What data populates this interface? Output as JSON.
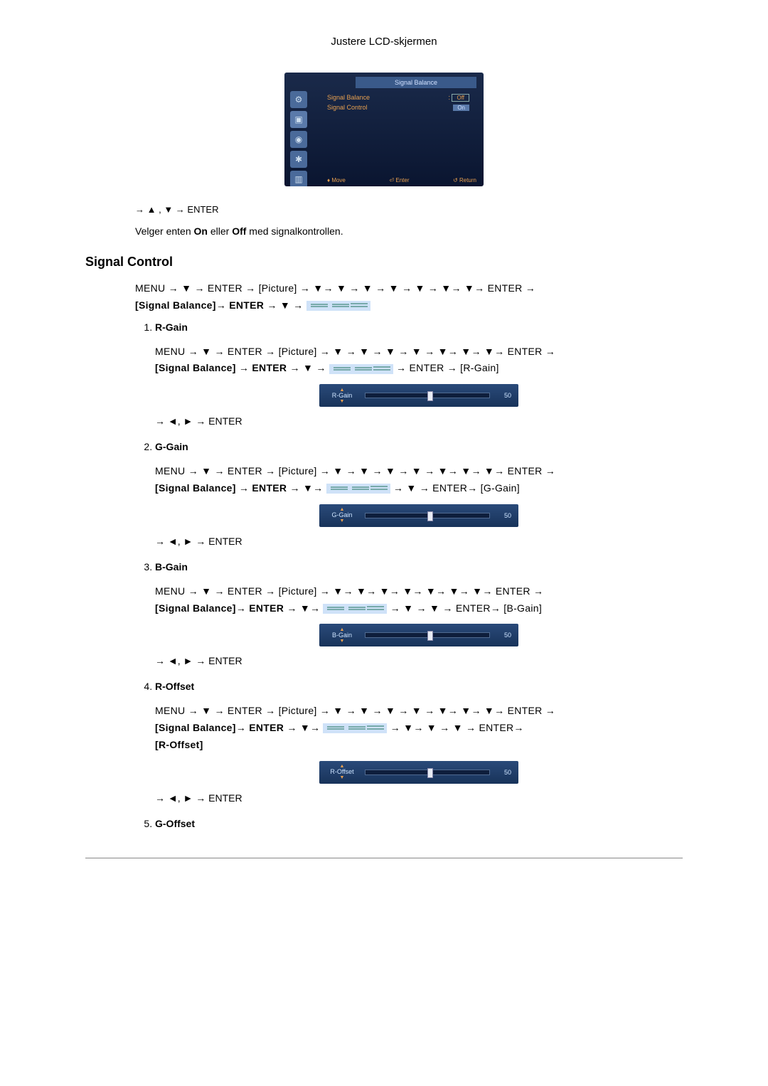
{
  "header": {
    "title": "Justere LCD-skjermen"
  },
  "osd": {
    "title": "Signal Balance",
    "items": [
      {
        "label": "Signal Balance",
        "value_off": "Off",
        "value_on": "On"
      },
      {
        "label": "Signal Control",
        "value": ""
      }
    ],
    "footer_move": "Move",
    "footer_enter": "Enter",
    "footer_return": "Return"
  },
  "nav_after_osd": "→ ▲ , ▼ → ENTER",
  "description": "Velger enten On eller Off med signalkontrollen.",
  "section_title": "Signal Control",
  "main_path_1": "MENU → ▼ → ENTER → [Picture] → ▼→ ▼ → ▼ → ▼ → ▼ → ▼→ ▼→ ENTER →",
  "main_path_2": "[Signal Balance]→ ENTER → ▼ → ",
  "controls": [
    {
      "title": "R-Gain",
      "path_1": "MENU → ▼ → ENTER → [Picture] → ▼ → ▼ → ▼ → ▼ → ▼→ ▼→ ▼→ ENTER →",
      "path_2": "[Signal Balance] → ENTER → ▼ → ",
      "path_3": " → ENTER → [R-Gain]",
      "slider_label": "R-Gain",
      "slider_value": 50,
      "nav_after": "→ ◄, ► → ENTER"
    },
    {
      "title": "G-Gain",
      "path_1": "MENU → ▼ → ENTER → [Picture] → ▼ → ▼ → ▼ → ▼ → ▼→ ▼→ ▼→ ENTER →",
      "path_2": "[Signal Balance] → ENTER → ▼→ ",
      "path_3": " → ▼ → ENTER→ [G-Gain]",
      "slider_label": "G-Gain",
      "slider_value": 50,
      "nav_after": "→ ◄, ► → ENTER"
    },
    {
      "title": "B-Gain",
      "path_1": "MENU → ▼ → ENTER → [Picture] → ▼→ ▼→ ▼→ ▼→ ▼→ ▼→ ▼→ ENTER →",
      "path_2": "[Signal Balance]→ ENTER → ▼→ ",
      "path_3": " → ▼ → ▼ → ENTER→ [B-Gain]",
      "slider_label": "B-Gain",
      "slider_value": 50,
      "nav_after": "→ ◄, ► → ENTER"
    },
    {
      "title": "R-Offset",
      "path_1": "MENU → ▼ → ENTER → [Picture] → ▼ → ▼ → ▼ → ▼ → ▼→ ▼→ ▼→ ENTER →",
      "path_2": "[Signal Balance]→ ENTER → ▼→ ",
      "path_3": " → ▼→ ▼ → ▼ → ENTER→",
      "path_4": "[R-Offset]",
      "slider_label": "R-Offset",
      "slider_value": 50,
      "nav_after": "→ ◄, ► → ENTER"
    },
    {
      "title": "G-Offset"
    }
  ],
  "colors": {
    "osd_bg_top": "#1a2a4a",
    "osd_bg_bottom": "#0a1530",
    "osd_accent": "#e8a050",
    "slider_bg_top": "#2a4a7a",
    "slider_bg_bottom": "#18335a",
    "text_color": "#000000"
  }
}
